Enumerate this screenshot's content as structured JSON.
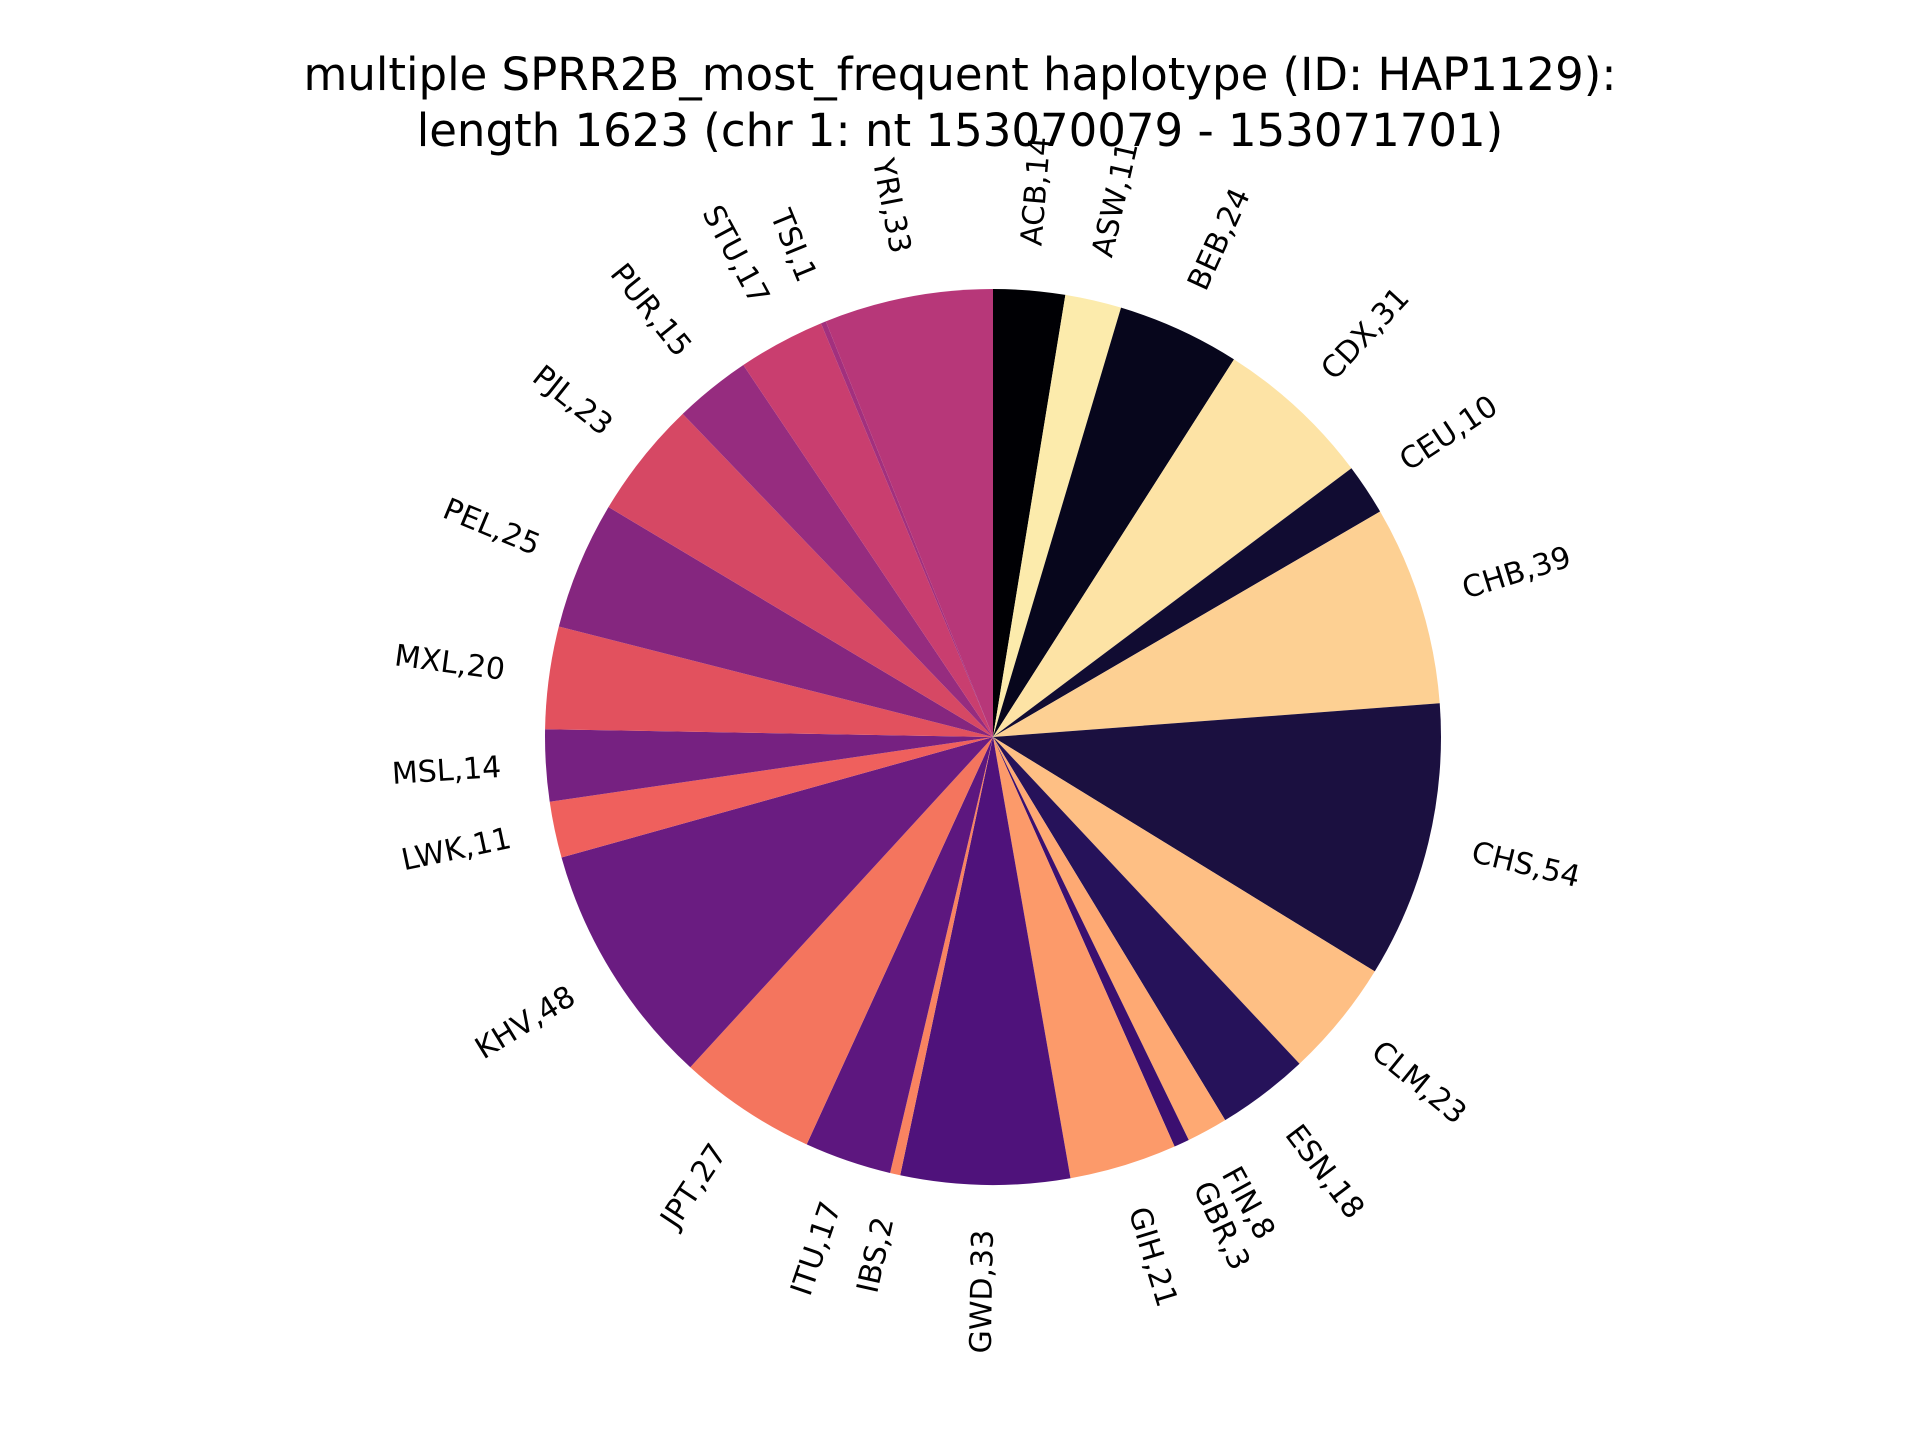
{
  "chart_data": {
    "type": "pie",
    "title_lines": [
      "multiple SPRR2B_most_frequent haplotype (ID: HAP1129):",
      "length 1623 (chr 1: nt 153070079 - 153071701)"
    ],
    "label_format": "{name},{value}",
    "start_angle_deg": 90,
    "direction": "clockwise",
    "slices": [
      {
        "name": "ACB",
        "value": 14,
        "color": "#000004"
      },
      {
        "name": "ASW",
        "value": 11,
        "color": "#fcebac"
      },
      {
        "name": "BEB",
        "value": 24,
        "color": "#07061c"
      },
      {
        "name": "CDX",
        "value": 31,
        "color": "#fde3a5"
      },
      {
        "name": "CEU",
        "value": 10,
        "color": "#110c32"
      },
      {
        "name": "CHB",
        "value": 39,
        "color": "#fdd093"
      },
      {
        "name": "CHS",
        "value": 54,
        "color": "#1b1040"
      },
      {
        "name": "CLM",
        "value": 23,
        "color": "#febf84"
      },
      {
        "name": "ESN",
        "value": 18,
        "color": "#26125a"
      },
      {
        "name": "FIN",
        "value": 8,
        "color": "#fea973"
      },
      {
        "name": "GBR",
        "value": 3,
        "color": "#3b0f70"
      },
      {
        "name": "GIH",
        "value": 21,
        "color": "#fc9a6a"
      },
      {
        "name": "GWD",
        "value": 33,
        "color": "#4f127b"
      },
      {
        "name": "IBS",
        "value": 2,
        "color": "#f98361"
      },
      {
        "name": "ITU",
        "value": 17,
        "color": "#5d177f"
      },
      {
        "name": "JPT",
        "value": 27,
        "color": "#f4755e"
      },
      {
        "name": "KHV",
        "value": 48,
        "color": "#6a1c81"
      },
      {
        "name": "LWK",
        "value": 11,
        "color": "#ef605d"
      },
      {
        "name": "MSL",
        "value": 14,
        "color": "#762181"
      },
      {
        "name": "MXL",
        "value": 20,
        "color": "#e2515e"
      },
      {
        "name": "PEL",
        "value": 25,
        "color": "#85267f"
      },
      {
        "name": "PJL",
        "value": 23,
        "color": "#d64864"
      },
      {
        "name": "PUR",
        "value": 15,
        "color": "#962c7f"
      },
      {
        "name": "STU",
        "value": 17,
        "color": "#c93e6f"
      },
      {
        "name": "TSI",
        "value": 1,
        "color": "#a2307e"
      },
      {
        "name": "YRI",
        "value": 33,
        "color": "#b73779"
      }
    ]
  }
}
